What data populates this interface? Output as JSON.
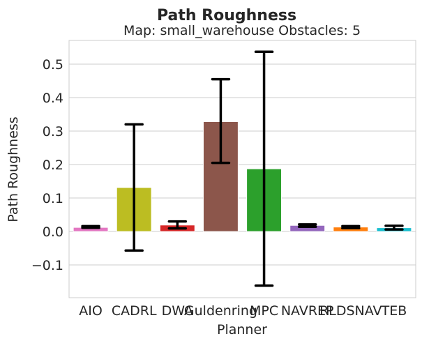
{
  "chart_data": {
    "type": "bar",
    "title": "Path Roughness",
    "subtitle": "Map: small_warehouse Obstacles: 5",
    "xlabel": "Planner",
    "ylabel": "Path Roughness",
    "ylim": [
      -0.2,
      0.57
    ],
    "yticks": [
      -0.1,
      0.0,
      0.1,
      0.2,
      0.3,
      0.4,
      0.5
    ],
    "ytick_labels": [
      "−0.1",
      "0.0",
      "0.1",
      "0.2",
      "0.3",
      "0.4",
      "0.5"
    ],
    "grid": true,
    "categories": [
      "AIO",
      "CADRL",
      "DWA",
      "Guldenring",
      "MPC",
      "NAVREP",
      "RLDSNAV",
      "TEB"
    ],
    "values": [
      0.012,
      0.131,
      0.019,
      0.328,
      0.187,
      0.018,
      0.013,
      0.011
    ],
    "error_low": [
      0.011,
      -0.057,
      0.009,
      0.205,
      -0.162,
      0.014,
      0.01,
      0.006
    ],
    "error_high": [
      0.016,
      0.32,
      0.03,
      0.455,
      0.537,
      0.021,
      0.016,
      0.017
    ],
    "colors": [
      "#e377c2",
      "#bcbd22",
      "#d62728",
      "#8c564b",
      "#2ca02c",
      "#9467bd",
      "#ff7f0e",
      "#17becf"
    ]
  }
}
